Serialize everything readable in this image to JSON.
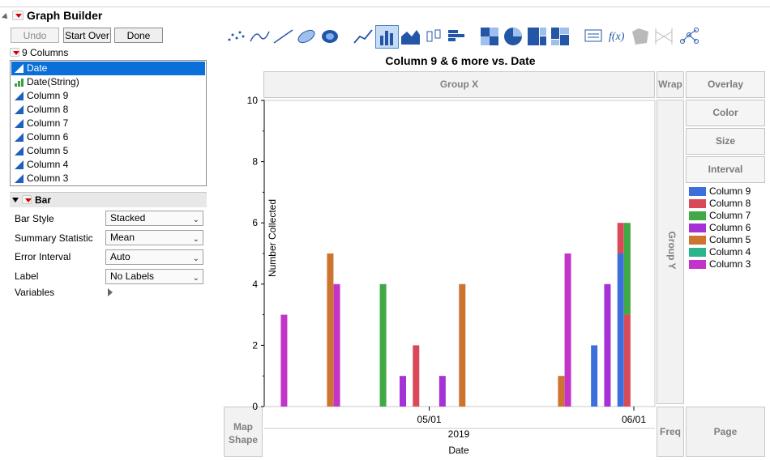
{
  "app": {
    "title": "Graph Builder"
  },
  "toolbar": {
    "undo": "Undo",
    "start_over": "Start Over",
    "done": "Done"
  },
  "columns_panel": {
    "header": "9 Columns",
    "items": [
      {
        "label": "Date",
        "icon": "continuous-icon"
      },
      {
        "label": "Date(String)",
        "icon": "nominal-icon"
      },
      {
        "label": "Column 9",
        "icon": "continuous-icon"
      },
      {
        "label": "Column 8",
        "icon": "continuous-icon"
      },
      {
        "label": "Column 7",
        "icon": "continuous-icon"
      },
      {
        "label": "Column 6",
        "icon": "continuous-icon"
      },
      {
        "label": "Column 5",
        "icon": "continuous-icon"
      },
      {
        "label": "Column 4",
        "icon": "continuous-icon"
      },
      {
        "label": "Column 3",
        "icon": "continuous-icon"
      }
    ]
  },
  "element_panel": {
    "title": "Bar",
    "props": [
      {
        "label": "Bar Style",
        "value": "Stacked"
      },
      {
        "label": "Summary Statistic",
        "value": "Mean"
      },
      {
        "label": "Error Interval",
        "value": "Auto"
      },
      {
        "label": "Label",
        "value": "No Labels"
      }
    ],
    "variables_label": "Variables"
  },
  "graph_types": [
    "points-icon",
    "smoother-icon",
    "line-of-fit-icon",
    "ellipse-icon",
    "contour-icon",
    "line-icon",
    "bar-icon",
    "area-icon",
    "box-plot-icon",
    "histogram-icon",
    "heatmap-icon",
    "pie-icon",
    "treemap-icon",
    "mosaic-icon",
    "caption-box-icon",
    "formula-icon",
    "map-shapes-icon",
    "parallel-icon",
    "network-icon"
  ],
  "zones": {
    "group_x": "Group X",
    "wrap": "Wrap",
    "group_y": "Group Y",
    "map_shape": "Map Shape",
    "freq": "Freq",
    "page": "Page",
    "overlay": "Overlay",
    "color": "Color",
    "size": "Size",
    "interval": "Interval"
  },
  "colors": {
    "Column 9": "#3d6fdc",
    "Column 8": "#d84a58",
    "Column 7": "#40a845",
    "Column 6": "#a632d6",
    "Column 5": "#cc7430",
    "Column 4": "#2bb58d",
    "Column 3": "#c335c8"
  },
  "chart_data": {
    "type": "bar",
    "title": "Column 9 & 6 more vs. Date",
    "xlabel": "Date",
    "ylabel": "Number Collected",
    "ylim": [
      0,
      10
    ],
    "yticks": [
      0,
      2,
      4,
      6,
      8,
      10
    ],
    "xlim": [
      "2019-04-06",
      "2019-06-01"
    ],
    "xticks": [
      "05/01",
      "06/01"
    ],
    "xtick_dates": [
      "2019-05-01",
      "2019-06-01"
    ],
    "x_sublabel": "2019",
    "bar_style": "stacked",
    "legend_position": "right",
    "series_names": [
      "Column 9",
      "Column 8",
      "Column 7",
      "Column 6",
      "Column 5",
      "Column 4",
      "Column 3"
    ],
    "bars": [
      {
        "x": "2019-04-09",
        "series": "Column 3",
        "value": 3
      },
      {
        "x": "2019-04-16",
        "series": "Column 5",
        "value": 5
      },
      {
        "x": "2019-04-17",
        "series": "Column 3",
        "value": 4
      },
      {
        "x": "2019-04-24",
        "series": "Column 7",
        "value": 4
      },
      {
        "x": "2019-04-27",
        "series": "Column 6",
        "value": 1
      },
      {
        "x": "2019-04-29",
        "series": "Column 8",
        "value": 2
      },
      {
        "x": "2019-05-03",
        "series": "Column 6",
        "value": 1
      },
      {
        "x": "2019-05-06",
        "series": "Column 5",
        "value": 4
      },
      {
        "x": "2019-05-21",
        "series": "Column 5",
        "value": 1
      },
      {
        "x": "2019-05-22",
        "series": "Column 3",
        "value": 5
      },
      {
        "x": "2019-05-26",
        "series": "Column 9",
        "value": 2
      },
      {
        "x": "2019-05-28",
        "series": "Column 6",
        "value": 4
      },
      {
        "x": "2019-05-30",
        "series": "Column 9",
        "value": 5
      },
      {
        "x": "2019-05-30",
        "series": "Column 8",
        "value": 1
      },
      {
        "x": "2019-05-31",
        "series": "Column 8",
        "value": 3
      },
      {
        "x": "2019-05-31",
        "series": "Column 7",
        "value": 3
      }
    ]
  }
}
